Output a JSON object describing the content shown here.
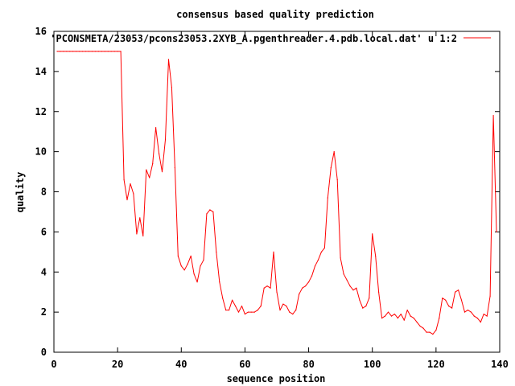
{
  "chart_data": {
    "type": "line",
    "title": "consensus based quality prediction",
    "xlabel": "sequence position",
    "ylabel": "quality",
    "xlim": [
      0,
      140
    ],
    "ylim": [
      0,
      16
    ],
    "xticks": [
      0,
      20,
      40,
      60,
      80,
      100,
      120,
      140
    ],
    "yticks": [
      0,
      2,
      4,
      6,
      8,
      10,
      12,
      14,
      16
    ],
    "grid": false,
    "legend_position": "top-right",
    "series": [
      {
        "name": "'PCONSMETA/23053/pcons23053.2XYB_A.pgenthreader.4.pdb.local.dat' u 1:2",
        "color": "#ff0000",
        "x": [
          1,
          2,
          3,
          4,
          5,
          6,
          7,
          8,
          9,
          10,
          11,
          12,
          13,
          14,
          15,
          16,
          17,
          18,
          19,
          20,
          21,
          22,
          23,
          24,
          25,
          26,
          27,
          28,
          29,
          30,
          31,
          32,
          33,
          34,
          35,
          36,
          37,
          38,
          39,
          40,
          41,
          42,
          43,
          44,
          45,
          46,
          47,
          48,
          49,
          50,
          51,
          52,
          53,
          54,
          55,
          56,
          57,
          58,
          59,
          60,
          61,
          62,
          63,
          64,
          65,
          66,
          67,
          68,
          69,
          70,
          71,
          72,
          73,
          74,
          75,
          76,
          77,
          78,
          79,
          80,
          81,
          82,
          83,
          84,
          85,
          86,
          87,
          88,
          89,
          90,
          91,
          92,
          93,
          94,
          95,
          96,
          97,
          98,
          99,
          100,
          101,
          102,
          103,
          104,
          105,
          106,
          107,
          108,
          109,
          110,
          111,
          112,
          113,
          114,
          115,
          116,
          117,
          118,
          119,
          120,
          121,
          122,
          123,
          124,
          125,
          126,
          127,
          128,
          129,
          130,
          131,
          132,
          133,
          134,
          135,
          136,
          137,
          138,
          139
        ],
        "y": [
          15,
          15,
          15,
          15,
          15,
          15,
          15,
          15,
          15,
          15,
          15,
          15,
          15,
          15,
          15,
          15,
          15,
          15,
          15,
          15,
          15,
          8.6,
          7.6,
          8.4,
          7.9,
          5.9,
          6.7,
          5.8,
          9.1,
          8.7,
          9.4,
          11.2,
          9.9,
          9.0,
          10.6,
          14.6,
          13.2,
          9.2,
          4.8,
          4.3,
          4.1,
          4.4,
          4.8,
          3.9,
          3.5,
          4.3,
          4.6,
          6.9,
          7.1,
          7.0,
          5.0,
          3.5,
          2.7,
          2.1,
          2.1,
          2.6,
          2.3,
          2.0,
          2.3,
          1.9,
          2.0,
          2.0,
          2.0,
          2.1,
          2.3,
          3.2,
          3.3,
          3.2,
          5.0,
          3.0,
          2.1,
          2.4,
          2.3,
          2.0,
          1.9,
          2.1,
          2.9,
          3.2,
          3.3,
          3.5,
          3.8,
          4.3,
          4.6,
          5.0,
          5.2,
          7.7,
          9.2,
          10.0,
          8.6,
          4.7,
          3.9,
          3.6,
          3.3,
          3.1,
          3.2,
          2.6,
          2.2,
          2.3,
          2.7,
          5.9,
          4.8,
          3.0,
          1.7,
          1.8,
          2.0,
          1.8,
          1.9,
          1.7,
          1.9,
          1.6,
          2.1,
          1.8,
          1.7,
          1.5,
          1.3,
          1.2,
          1.0,
          1.0,
          0.9,
          1.1,
          1.7,
          2.7,
          2.6,
          2.3,
          2.2,
          3.0,
          3.1,
          2.6,
          2.0,
          2.1,
          2.0,
          1.8,
          1.7,
          1.5,
          1.9,
          1.8,
          2.8,
          11.8,
          6.0
        ]
      }
    ]
  }
}
